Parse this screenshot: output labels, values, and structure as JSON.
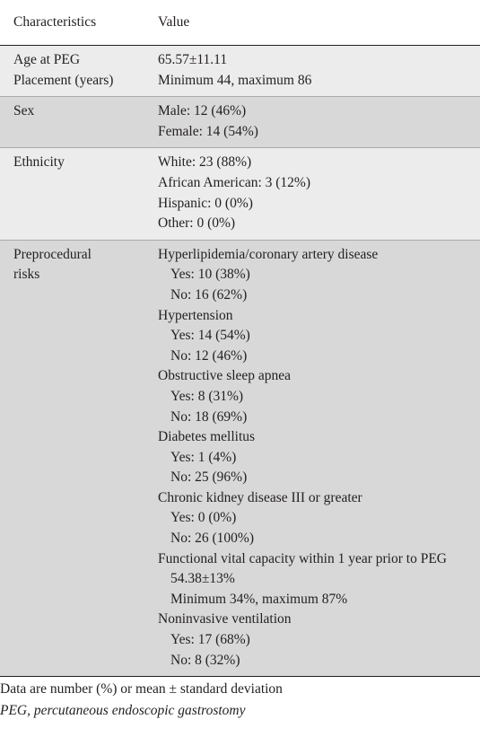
{
  "table": {
    "headers": [
      "Characteristics",
      "Value"
    ],
    "rows": [
      {
        "label": [
          "Age at PEG",
          "Placement (years)"
        ],
        "values": [
          {
            "text": "65.57±11.11",
            "indent": false
          },
          {
            "text": "Minimum 44, maximum 86",
            "indent": false
          }
        ]
      },
      {
        "label": [
          "Sex"
        ],
        "values": [
          {
            "text": "Male: 12 (46%)",
            "indent": false
          },
          {
            "text": "Female: 14 (54%)",
            "indent": false
          }
        ]
      },
      {
        "label": [
          "Ethnicity"
        ],
        "values": [
          {
            "text": "White: 23 (88%)",
            "indent": false
          },
          {
            "text": "African American: 3 (12%)",
            "indent": false
          },
          {
            "text": "Hispanic: 0 (0%)",
            "indent": false
          },
          {
            "text": "Other: 0 (0%)",
            "indent": false
          }
        ]
      },
      {
        "label": [
          "Preprocedural",
          "risks"
        ],
        "values": [
          {
            "text": "Hyperlipidemia/coronary artery disease",
            "indent": false
          },
          {
            "text": "Yes: 10 (38%)",
            "indent": true
          },
          {
            "text": "No: 16 (62%)",
            "indent": true
          },
          {
            "text": "Hypertension",
            "indent": false
          },
          {
            "text": "Yes: 14 (54%)",
            "indent": true
          },
          {
            "text": "No: 12 (46%)",
            "indent": true
          },
          {
            "text": "Obstructive sleep apnea",
            "indent": false
          },
          {
            "text": "Yes: 8 (31%)",
            "indent": true
          },
          {
            "text": "No: 18 (69%)",
            "indent": true
          },
          {
            "text": "Diabetes mellitus",
            "indent": false
          },
          {
            "text": "Yes: 1 (4%)",
            "indent": true
          },
          {
            "text": "No: 25 (96%)",
            "indent": true
          },
          {
            "text": "Chronic kidney disease III or greater",
            "indent": false
          },
          {
            "text": "Yes: 0 (0%)",
            "indent": true
          },
          {
            "text": "No: 26 (100%)",
            "indent": true
          },
          {
            "text": "Functional vital capacity within 1 year prior to PEG",
            "indent": false,
            "wrap": true
          },
          {
            "text": "54.38±13%",
            "indent": true
          },
          {
            "text": "Minimum 34%, maximum 87%",
            "indent": true
          },
          {
            "text": "Noninvasive ventilation",
            "indent": false
          },
          {
            "text": "Yes: 17 (68%)",
            "indent": true
          },
          {
            "text": "No: 8 (32%)",
            "indent": true
          }
        ]
      }
    ]
  },
  "footnotes": {
    "data_note": "Data are number (%) or mean ± standard deviation",
    "abbreviation": "PEG, percutaneous endoscopic gastrostomy"
  }
}
